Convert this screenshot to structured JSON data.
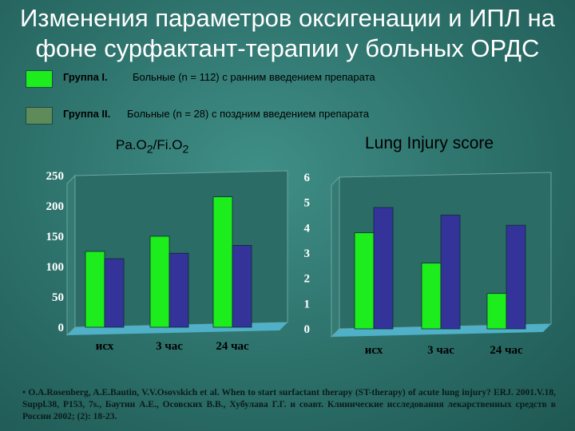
{
  "title_line1": "Изменения параметров оксигенации и ИПЛ на",
  "title_line2": "фоне сурфактант-терапии у больных ОРДС",
  "legend": [
    {
      "label": "Группа I.",
      "text": "Больные (n = 112) с ранним введением препарата",
      "color": "#1dec1d"
    },
    {
      "label": "Группа II.",
      "text": "Больные (n = 28) с поздним введением препарата",
      "color": "#5f8a5a"
    }
  ],
  "chart_data": [
    {
      "type": "bar",
      "title_main": "Pa.O",
      "title_sub1": "2",
      "title_mid": "/Fi.O",
      "title_sub2": "2",
      "categories": [
        "исх",
        "3 час",
        "24 час"
      ],
      "series": [
        {
          "values": [
            125,
            150,
            215
          ],
          "color": "#1dec1d"
        },
        {
          "values": [
            113,
            122,
            135
          ],
          "color": "#33339a"
        }
      ],
      "ylim": [
        0,
        250
      ],
      "yticks": [
        "0",
        "50",
        "100",
        "150",
        "200",
        "250"
      ],
      "grid": false
    },
    {
      "type": "bar",
      "title": "Lung Injury score",
      "categories": [
        "исх",
        "3 час",
        "24 час"
      ],
      "series": [
        {
          "values": [
            3.8,
            2.6,
            1.4
          ],
          "color": "#1dec1d"
        },
        {
          "values": [
            4.8,
            4.5,
            4.1
          ],
          "color": "#33339a"
        }
      ],
      "ylim": [
        0,
        6
      ],
      "yticks": [
        "0",
        "1",
        "2",
        "3",
        "4",
        "5",
        "6"
      ],
      "grid": false
    }
  ],
  "reference": "• O.A.Rosenberg, A.E.Bautin, V.V.Osovskich et al. When to start surfactant therapy (ST-therapy) of acute lung injury? ERJ. 2001.V.18, Suppl.38, P153, 7s., Баутин А.Е., Осовских В.В., Хубулава Г.Г. и соавт. Клинические исследования лекарственных средств в России 2002; (2): 18-23."
}
